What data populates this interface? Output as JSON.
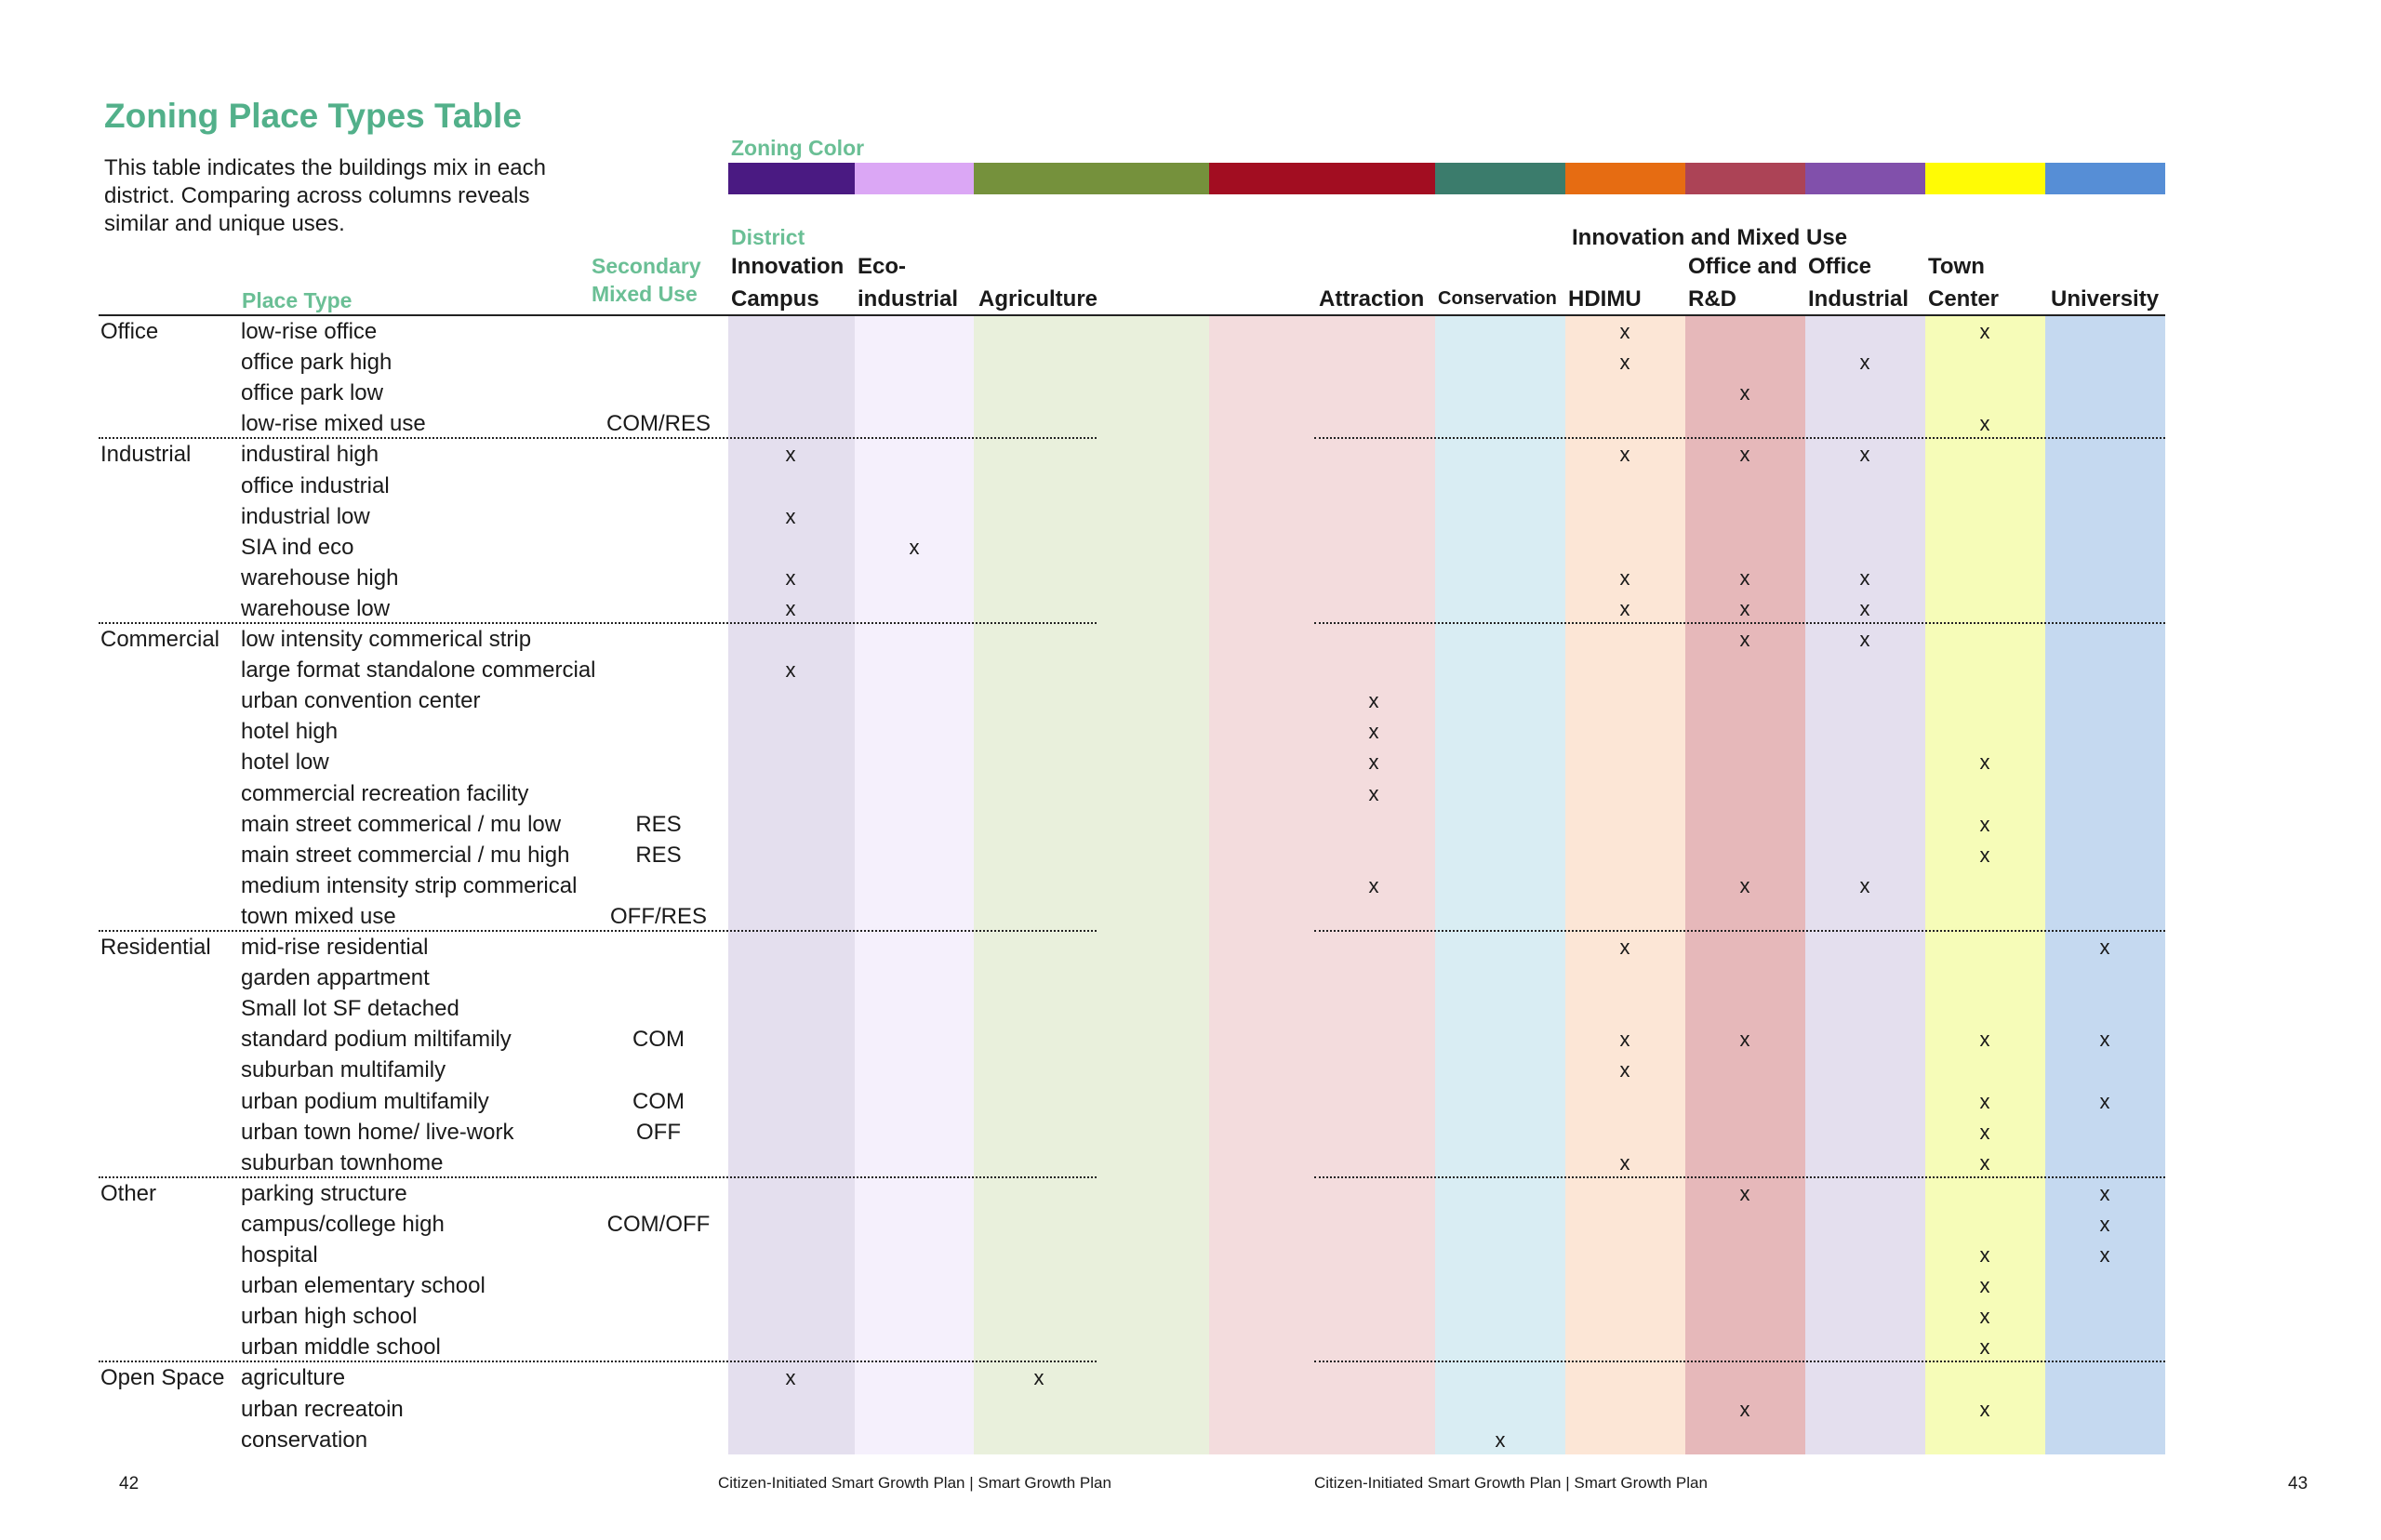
{
  "title": "Zoning Place Types Table",
  "intro": "This table indicates the buildings mix in each district. Comparing across columns reveals similar and unique uses.",
  "labels": {
    "zoning_color": "Zoning Color",
    "district": "District",
    "place_type": "Place Type",
    "secondary_line1": "Secondary",
    "secondary_line2": "Mixed Use",
    "innovation_group": "Innovation and Mixed Use"
  },
  "columns": [
    {
      "line1": "Innovation",
      "line2": "Campus",
      "color": "#4a1a82",
      "bg": "#e4dfee"
    },
    {
      "line1": "Eco-",
      "line2": "industrial",
      "color": "#dba7f5",
      "bg": "#f5f0fc"
    },
    {
      "line1": "",
      "line2": "Agriculture",
      "color": "#75913c",
      "bg": "#e9f0dc"
    },
    {
      "line1": "",
      "line2": "Attraction",
      "color": "#a20d21",
      "bg": "#f3dcdd"
    },
    {
      "line1": "",
      "line2": "Conservation",
      "color": "#3b7c6c",
      "bg": "#d9edf3"
    },
    {
      "line1": "",
      "line2": "HDIMU",
      "color": "#e66c12",
      "bg": "#fce6d6"
    },
    {
      "line1": "Office and",
      "line2": "R&D",
      "color": "#ac4356",
      "bg": "#e6b8ba"
    },
    {
      "line1": "Office",
      "line2": "Industrial",
      "color": "#8150ab",
      "bg": "#e4dfee"
    },
    {
      "line1": "Town",
      "line2": "Center",
      "color": "#fffb05",
      "bg": "#f6fcb8"
    },
    {
      "line1": "",
      "line2": "University",
      "color": "#568ed6",
      "bg": "#c5d9f0"
    }
  ],
  "groups": [
    {
      "name": "Office",
      "rows": [
        {
          "place": "low-rise office",
          "secondary": "",
          "x": [
            5,
            8
          ]
        },
        {
          "place": "office park high",
          "secondary": "",
          "x": [
            5,
            7
          ]
        },
        {
          "place": "office park low",
          "secondary": "",
          "x": [
            6
          ]
        },
        {
          "place": "low-rise mixed use",
          "secondary": "COM/RES",
          "x": [
            8
          ]
        }
      ]
    },
    {
      "name": "Industrial",
      "rows": [
        {
          "place": "industiral high",
          "secondary": "",
          "x": [
            0,
            5,
            6,
            7
          ]
        },
        {
          "place": "office industrial",
          "secondary": "",
          "x": []
        },
        {
          "place": "industrial low",
          "secondary": "",
          "x": [
            0
          ]
        },
        {
          "place": "SIA ind eco",
          "secondary": "",
          "x": [
            1
          ]
        },
        {
          "place": "warehouse high",
          "secondary": "",
          "x": [
            0,
            5,
            6,
            7
          ]
        },
        {
          "place": "warehouse low",
          "secondary": "",
          "x": [
            0,
            5,
            6,
            7
          ]
        }
      ]
    },
    {
      "name": "Commercial",
      "rows": [
        {
          "place": "low intensity commerical strip",
          "secondary": "",
          "x": [
            6,
            7
          ]
        },
        {
          "place": "large format standalone commercial",
          "secondary": "",
          "x": [
            0
          ]
        },
        {
          "place": "urban convention center",
          "secondary": "",
          "x": [
            3
          ]
        },
        {
          "place": "hotel high",
          "secondary": "",
          "x": [
            3
          ]
        },
        {
          "place": "hotel low",
          "secondary": "",
          "x": [
            3,
            8
          ]
        },
        {
          "place": "commercial recreation facility",
          "secondary": "",
          "x": [
            3
          ]
        },
        {
          "place": "main street commerical / mu low",
          "secondary": "RES",
          "x": [
            8
          ]
        },
        {
          "place": "main street commercial / mu high",
          "secondary": "RES",
          "x": [
            8
          ]
        },
        {
          "place": "medium intensity strip commerical",
          "secondary": "",
          "x": [
            3,
            6,
            7
          ]
        },
        {
          "place": "town mixed use",
          "secondary": "OFF/RES",
          "x": []
        }
      ]
    },
    {
      "name": "Residential",
      "rows": [
        {
          "place": "mid-rise residential",
          "secondary": "",
          "x": [
            5,
            9
          ]
        },
        {
          "place": "garden appartment",
          "secondary": "",
          "x": []
        },
        {
          "place": "Small lot SF detached",
          "secondary": "",
          "x": []
        },
        {
          "place": "standard podium miltifamily",
          "secondary": "COM",
          "x": [
            5,
            6,
            8,
            9
          ]
        },
        {
          "place": "suburban multifamily",
          "secondary": "",
          "x": [
            5
          ]
        },
        {
          "place": "urban podium multifamily",
          "secondary": "COM",
          "x": [
            8,
            9
          ]
        },
        {
          "place": "urban town home/ live-work",
          "secondary": "OFF",
          "x": [
            8
          ]
        },
        {
          "place": "suburban townhome",
          "secondary": "",
          "x": [
            5,
            8
          ]
        }
      ]
    },
    {
      "name": "Other",
      "rows": [
        {
          "place": "parking structure",
          "secondary": "",
          "x": [
            6,
            9
          ]
        },
        {
          "place": "campus/college high",
          "secondary": "COM/OFF",
          "x": [
            9
          ]
        },
        {
          "place": "hospital",
          "secondary": "",
          "x": [
            8,
            9
          ]
        },
        {
          "place": "urban elementary school",
          "secondary": "",
          "x": [
            8
          ]
        },
        {
          "place": "urban high school",
          "secondary": "",
          "x": [
            8
          ]
        },
        {
          "place": "urban middle school",
          "secondary": "",
          "x": [
            8
          ]
        }
      ]
    },
    {
      "name": "Open Space",
      "rows": [
        {
          "place": "agriculture",
          "secondary": "",
          "x": [
            0,
            2
          ]
        },
        {
          "place": "urban recreatoin",
          "secondary": "",
          "x": [
            6,
            8
          ]
        },
        {
          "place": "conservation",
          "secondary": "",
          "x": [
            4
          ]
        }
      ]
    }
  ],
  "mark": "x",
  "footer": {
    "page_left": "42",
    "page_right": "43",
    "caption_left": "Citizen-Initiated Smart Growth Plan  | Smart Growth Plan",
    "caption_right": "Citizen-Initiated Smart Growth Plan  | Smart Growth Plan"
  }
}
